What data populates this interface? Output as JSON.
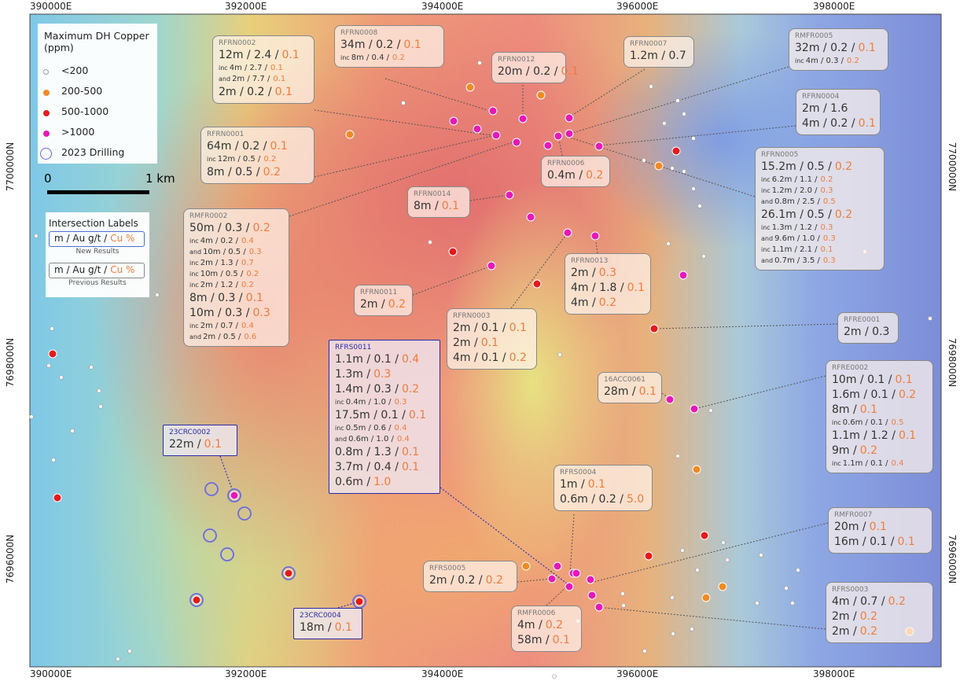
{
  "coords": {
    "x": [
      "390000E",
      "392000E",
      "394000E",
      "396000E",
      "398000E"
    ],
    "y": [
      "7700000N",
      "7698000N",
      "7696000N"
    ]
  },
  "legend": {
    "title": "Maximum DH Copper (ppm)",
    "items": [
      {
        "label": "<200",
        "color": "#ffffff"
      },
      {
        "label": "200-500",
        "color": "#f08a24"
      },
      {
        "label": "500-1000",
        "color": "#e41a1c"
      },
      {
        "label": ">1000",
        "color": "#e619b8"
      },
      {
        "label": "2023 Drilling",
        "color": "#6a6ae6"
      }
    ]
  },
  "scale": {
    "start": "0",
    "end": "1 km"
  },
  "key": {
    "title": "Intersection Labels",
    "rows": [
      {
        "text": "m / Au g/t /",
        "cu": "Cu %",
        "caption": "New Results"
      },
      {
        "text": "m / Au g/t /",
        "cu": "Cu %",
        "caption": "Previous Results"
      }
    ]
  },
  "labels": [
    {
      "id": "RFRN0002",
      "lines": [
        {
          "text": "12m / 2.4 /",
          "cu": "0.1"
        },
        {
          "pre": "inc",
          "text": "4m / 2.7 /",
          "cu": "0.1"
        },
        {
          "pre": "and",
          "text": "2m / 7.7 /",
          "cu": "0.1"
        },
        {
          "text": "2m / 0.2 /",
          "cu": "0.1"
        }
      ]
    },
    {
      "id": "RFRN0008",
      "lines": [
        {
          "text": "34m / 0.2 /",
          "cu": "0.1"
        },
        {
          "pre": "inc",
          "text": "8m / 0.4 /",
          "cu": "0.2"
        }
      ]
    },
    {
      "id": "RFRN0012",
      "lines": [
        {
          "text": "20m / 0.2 /",
          "cu": "0.1"
        }
      ]
    },
    {
      "id": "RFRN0007",
      "lines": [
        {
          "text": "1.2m / 0.7"
        }
      ]
    },
    {
      "id": "RMFR0005",
      "lines": [
        {
          "text": "32m / 0.2 /",
          "cu": "0.1"
        },
        {
          "pre": "inc",
          "text": "4m / 0.3 /",
          "cu": "0.2"
        }
      ]
    },
    {
      "id": "RFRN0004",
      "lines": [
        {
          "text": "2m / 1.6"
        },
        {
          "text": "4m / 0.2 /",
          "cu": "0.1"
        }
      ]
    },
    {
      "id": "RFRN0001",
      "lines": [
        {
          "text": "64m / 0.2 /",
          "cu": "0.1"
        },
        {
          "pre": "inc",
          "text": "12m / 0.5 /",
          "cu": "0.2"
        },
        {
          "text": "8m / 0.5 /",
          "cu": "0.2"
        }
      ]
    },
    {
      "id": "RFRN0006",
      "lines": [
        {
          "text": "0.4m /",
          "cu": "0.2"
        }
      ]
    },
    {
      "id": "RFRN0005",
      "lines": [
        {
          "text": "15.2m / 0.5 /",
          "cu": "0.2"
        },
        {
          "pre": "inc",
          "text": "6.2m / 1.1 /",
          "cu": "0.2"
        },
        {
          "pre": "inc",
          "text": "1.2m / 2.0 /",
          "cu": "0.3"
        },
        {
          "pre": "and",
          "text": "0.8m / 2.5 /",
          "cu": "0.5"
        },
        {
          "text": "26.1m / 0.5 /",
          "cu": "0.2"
        },
        {
          "pre": "inc",
          "text": "1.3m / 1.2 /",
          "cu": "0.3"
        },
        {
          "pre": "and",
          "text": "9.6m / 1.0 /",
          "cu": "0.3"
        },
        {
          "pre": "inc",
          "text": "1.1m / 2.1 /",
          "cu": "0.1"
        },
        {
          "pre": "and",
          "text": "0.7m / 3.5 /",
          "cu": "0.3"
        }
      ]
    },
    {
      "id": "RFRN0014",
      "lines": [
        {
          "text": "8m /",
          "cu": "0.1"
        }
      ]
    },
    {
      "id": "RMFR0002",
      "lines": [
        {
          "text": "50m / 0.3 /",
          "cu": "0.2"
        },
        {
          "pre": "inc",
          "text": "4m / 0.2 /",
          "cu": "0.4"
        },
        {
          "pre": "and",
          "text": "10m / 0.5 /",
          "cu": "0.3"
        },
        {
          "pre": "inc",
          "text": "2m / 1.3 /",
          "cu": "0.7"
        },
        {
          "pre": "inc",
          "text": "10m / 0.5 /",
          "cu": "0.2"
        },
        {
          "pre": "inc",
          "text": "2m / 1.2 /",
          "cu": "0.2"
        },
        {
          "text": "8m / 0.3 /",
          "cu": "0.1"
        },
        {
          "text": "10m / 0.3 /",
          "cu": "0.3"
        },
        {
          "pre": "inc",
          "text": "2m / 0.7 /",
          "cu": "0.4"
        },
        {
          "pre": "and",
          "text": "2m / 0.5 /",
          "cu": "0.6"
        }
      ]
    },
    {
      "id": "RFRN0011",
      "lines": [
        {
          "text": "2m /",
          "cu": "0.2"
        }
      ]
    },
    {
      "id": "RFRN0003",
      "lines": [
        {
          "text": "2m / 0.1 /",
          "cu": "0.1"
        },
        {
          "text": "2m /",
          "cu": "0.1"
        },
        {
          "text": "4m / 0.1 /",
          "cu": "0.2"
        }
      ]
    },
    {
      "id": "RFRN0013",
      "lines": [
        {
          "text": "2m /",
          "cu": "0.3"
        },
        {
          "text": "4m / 1.8 /",
          "cu": "0.1"
        },
        {
          "text": "4m /",
          "cu": "0.2"
        }
      ]
    },
    {
      "id": "RFRE0001",
      "lines": [
        {
          "text": "2m / 0.3"
        }
      ]
    },
    {
      "id": "RFRS0011",
      "color": "#2b2ba8",
      "lines": [
        {
          "text": "1.1m / 0.1 /",
          "cu": "0.4"
        },
        {
          "text": "1.3m /",
          "cu": "0.3"
        },
        {
          "text": "1.4m / 0.3 /",
          "cu": "0.2"
        },
        {
          "pre": "inc",
          "text": "0.4m / 1.0 /",
          "cu": "0.3"
        },
        {
          "text": "17.5m / 0.1 /",
          "cu": "0.1"
        },
        {
          "pre": "inc",
          "text": "0.5m / 0.6 /",
          "cu": "0.4"
        },
        {
          "pre": "and",
          "text": "0.6m / 1.0 /",
          "cu": "0.4"
        },
        {
          "text": "0.8m / 1.3 /",
          "cu": "0.1"
        },
        {
          "text": "3.7m / 0.4 /",
          "cu": "0.1"
        },
        {
          "text": "0.6m /",
          "cu": "1.0"
        }
      ]
    },
    {
      "id": "16ACC0061",
      "lines": [
        {
          "text": "28m /",
          "cu": "0.1"
        }
      ]
    },
    {
      "id": "RFRE0002",
      "lines": [
        {
          "text": "10m / 0.1 /",
          "cu": "0.1"
        },
        {
          "text": "1.6m / 0.1 /",
          "cu": "0.2"
        },
        {
          "text": "8m /",
          "cu": "0.1"
        },
        {
          "pre": "inc",
          "text": "0.6m / 0.1 /",
          "cu": "0.5"
        },
        {
          "text": "1.1m / 1.2 /",
          "cu": "0.1"
        },
        {
          "text": "9m /",
          "cu": "0.2"
        },
        {
          "pre": "inc",
          "text": "1.1m / 0.1 /",
          "cu": "0.4"
        }
      ]
    },
    {
      "id": "23CRC0002",
      "color": "#2b2ba8",
      "lines": [
        {
          "text": "22m /",
          "cu": "0.1"
        }
      ]
    },
    {
      "id": "RFRS0004",
      "lines": [
        {
          "text": "1m /",
          "cu": "0.1"
        },
        {
          "text": "0.6m / 0.2 /",
          "cu": "5.0"
        }
      ]
    },
    {
      "id": "RMFR0007",
      "lines": [
        {
          "text": "20m /",
          "cu": "0.1"
        },
        {
          "text": "16m / 0.1 /",
          "cu": "0.1"
        }
      ]
    },
    {
      "id": "RFRS0005",
      "lines": [
        {
          "text": "2m / 0.2 /",
          "cu": "0.2"
        }
      ]
    },
    {
      "id": "RMFR0006",
      "lines": [
        {
          "text": "4m /",
          "cu": "0.2"
        },
        {
          "text": "58m /",
          "cu": "0.1"
        }
      ]
    },
    {
      "id": "RFRS0003",
      "lines": [
        {
          "text": "4m / 0.7 /",
          "cu": "0.2"
        },
        {
          "text": "2m /",
          "cu": "0.2"
        },
        {
          "text": "2m /",
          "cu": "0.2"
        }
      ]
    },
    {
      "id": "23CRC0004",
      "color": "#2b2ba8",
      "lines": [
        {
          "text": "18m /",
          "cu": "0.1"
        }
      ]
    }
  ]
}
